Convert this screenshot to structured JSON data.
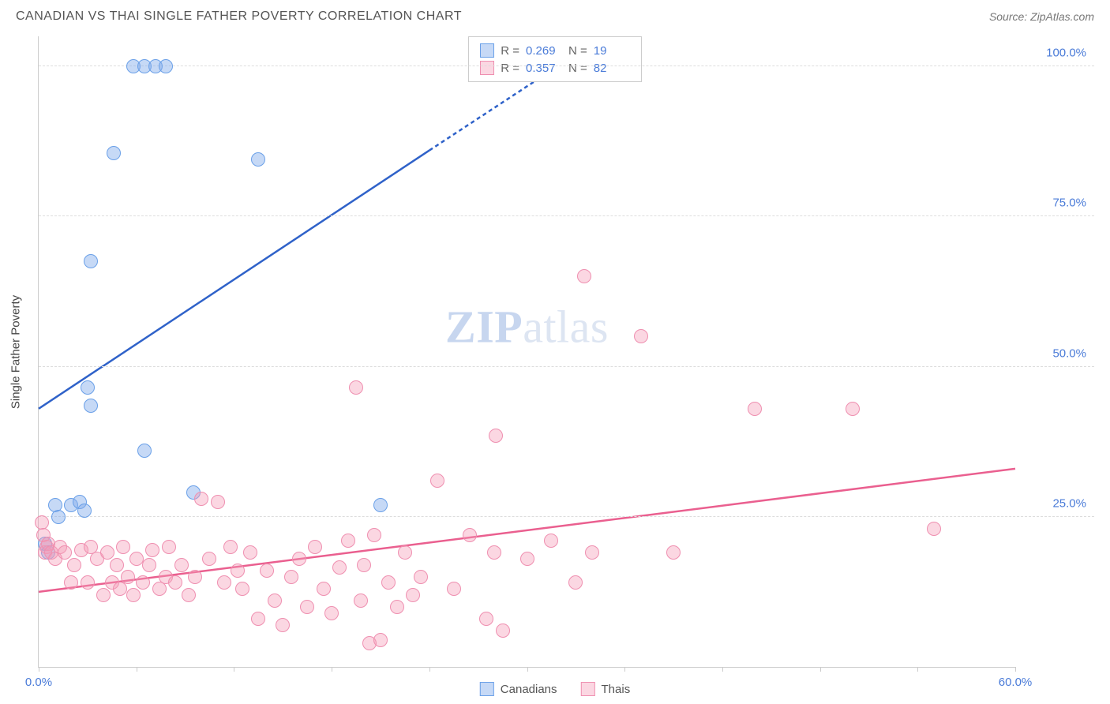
{
  "header": {
    "title": "CANADIAN VS THAI SINGLE FATHER POVERTY CORRELATION CHART",
    "source": "Source: ZipAtlas.com"
  },
  "chart": {
    "type": "scatter",
    "yaxis_title": "Single Father Poverty",
    "xlim": [
      0,
      60
    ],
    "ylim": [
      0,
      105
    ],
    "xtick_positions": [
      0,
      6,
      12,
      18,
      24,
      30,
      36,
      42,
      48,
      54,
      60
    ],
    "xtick_labels": {
      "0": "0.0%",
      "60": "60.0%"
    },
    "ytick_positions": [
      25,
      50,
      75,
      100
    ],
    "ytick_labels": {
      "25": "25.0%",
      "50": "50.0%",
      "75": "75.0%",
      "100": "100.0%"
    },
    "grid_color": "#dddddd",
    "axis_color": "#cccccc",
    "background_color": "#ffffff",
    "point_radius": 9,
    "watermark_zip": "ZIP",
    "watermark_atlas": "atlas",
    "series": [
      {
        "name": "Canadians",
        "fill_color": "rgba(129,171,235,0.45)",
        "stroke_color": "#6aa0e8",
        "trend_color": "#2f62c9",
        "trend_width": 2.5,
        "trend": {
          "x1": 0,
          "y1": 43,
          "x2": 24,
          "y2": 86,
          "x2_dash": 33,
          "y2_dash": 102
        },
        "stats": {
          "R": "0.269",
          "N": "19"
        },
        "points": [
          {
            "x": 0.4,
            "y": 20.5
          },
          {
            "x": 0.6,
            "y": 19
          },
          {
            "x": 1.0,
            "y": 27
          },
          {
            "x": 1.2,
            "y": 25
          },
          {
            "x": 2.0,
            "y": 27
          },
          {
            "x": 2.5,
            "y": 27.5
          },
          {
            "x": 2.8,
            "y": 26
          },
          {
            "x": 3.2,
            "y": 43.5
          },
          {
            "x": 3.0,
            "y": 46.5
          },
          {
            "x": 3.2,
            "y": 67.5
          },
          {
            "x": 4.6,
            "y": 85.5
          },
          {
            "x": 6.5,
            "y": 36
          },
          {
            "x": 5.8,
            "y": 100
          },
          {
            "x": 6.5,
            "y": 100
          },
          {
            "x": 7.2,
            "y": 100
          },
          {
            "x": 7.8,
            "y": 100
          },
          {
            "x": 9.5,
            "y": 29
          },
          {
            "x": 13.5,
            "y": 84.5
          },
          {
            "x": 21.0,
            "y": 27
          }
        ]
      },
      {
        "name": "Thais",
        "fill_color": "rgba(244,154,183,0.40)",
        "stroke_color": "#ef8fb0",
        "trend_color": "#ea5f8f",
        "trend_width": 2.5,
        "trend": {
          "x1": 0,
          "y1": 12.5,
          "x2": 60,
          "y2": 33
        },
        "stats": {
          "R": "0.357",
          "N": "82"
        },
        "points": [
          {
            "x": 0.2,
            "y": 24
          },
          {
            "x": 0.3,
            "y": 22
          },
          {
            "x": 0.5,
            "y": 20
          },
          {
            "x": 0.4,
            "y": 19
          },
          {
            "x": 0.6,
            "y": 20.5
          },
          {
            "x": 0.8,
            "y": 19
          },
          {
            "x": 1.0,
            "y": 18
          },
          {
            "x": 1.3,
            "y": 20
          },
          {
            "x": 1.6,
            "y": 19
          },
          {
            "x": 2.0,
            "y": 14
          },
          {
            "x": 2.2,
            "y": 17
          },
          {
            "x": 2.6,
            "y": 19.5
          },
          {
            "x": 3.0,
            "y": 14
          },
          {
            "x": 3.2,
            "y": 20
          },
          {
            "x": 3.6,
            "y": 18
          },
          {
            "x": 4.0,
            "y": 12
          },
          {
            "x": 4.2,
            "y": 19
          },
          {
            "x": 4.5,
            "y": 14
          },
          {
            "x": 4.8,
            "y": 17
          },
          {
            "x": 5.0,
            "y": 13
          },
          {
            "x": 5.2,
            "y": 20
          },
          {
            "x": 5.5,
            "y": 15
          },
          {
            "x": 5.8,
            "y": 12
          },
          {
            "x": 6.0,
            "y": 18
          },
          {
            "x": 6.4,
            "y": 14
          },
          {
            "x": 6.8,
            "y": 17
          },
          {
            "x": 7.0,
            "y": 19.5
          },
          {
            "x": 7.4,
            "y": 13
          },
          {
            "x": 7.8,
            "y": 15
          },
          {
            "x": 8.0,
            "y": 20
          },
          {
            "x": 8.4,
            "y": 14
          },
          {
            "x": 8.8,
            "y": 17
          },
          {
            "x": 9.2,
            "y": 12
          },
          {
            "x": 9.6,
            "y": 15
          },
          {
            "x": 10.0,
            "y": 28
          },
          {
            "x": 10.5,
            "y": 18
          },
          {
            "x": 11.0,
            "y": 27.5
          },
          {
            "x": 11.4,
            "y": 14
          },
          {
            "x": 11.8,
            "y": 20
          },
          {
            "x": 12.2,
            "y": 16
          },
          {
            "x": 12.5,
            "y": 13
          },
          {
            "x": 13.0,
            "y": 19
          },
          {
            "x": 13.5,
            "y": 8
          },
          {
            "x": 14.0,
            "y": 16
          },
          {
            "x": 14.5,
            "y": 11
          },
          {
            "x": 15.0,
            "y": 7
          },
          {
            "x": 15.5,
            "y": 15
          },
          {
            "x": 16.0,
            "y": 18
          },
          {
            "x": 16.5,
            "y": 10
          },
          {
            "x": 17.0,
            "y": 20
          },
          {
            "x": 17.5,
            "y": 13
          },
          {
            "x": 18.0,
            "y": 9
          },
          {
            "x": 18.5,
            "y": 16.5
          },
          {
            "x": 19.0,
            "y": 21
          },
          {
            "x": 19.5,
            "y": 46.5
          },
          {
            "x": 19.8,
            "y": 11
          },
          {
            "x": 20.0,
            "y": 17
          },
          {
            "x": 20.3,
            "y": 4
          },
          {
            "x": 20.6,
            "y": 22
          },
          {
            "x": 21.0,
            "y": 4.5
          },
          {
            "x": 21.5,
            "y": 14
          },
          {
            "x": 22.0,
            "y": 10
          },
          {
            "x": 22.5,
            "y": 19
          },
          {
            "x": 23.0,
            "y": 12
          },
          {
            "x": 23.5,
            "y": 15
          },
          {
            "x": 24.5,
            "y": 31
          },
          {
            "x": 25.5,
            "y": 13
          },
          {
            "x": 26.5,
            "y": 22
          },
          {
            "x": 27.5,
            "y": 8
          },
          {
            "x": 28.0,
            "y": 19
          },
          {
            "x": 28.1,
            "y": 38.5
          },
          {
            "x": 28.5,
            "y": 6
          },
          {
            "x": 30.0,
            "y": 18
          },
          {
            "x": 31.5,
            "y": 21
          },
          {
            "x": 33.0,
            "y": 14
          },
          {
            "x": 33.5,
            "y": 65
          },
          {
            "x": 34.0,
            "y": 19
          },
          {
            "x": 37.0,
            "y": 55
          },
          {
            "x": 39.0,
            "y": 19
          },
          {
            "x": 44.0,
            "y": 43
          },
          {
            "x": 50.0,
            "y": 43
          },
          {
            "x": 55.0,
            "y": 23
          }
        ]
      }
    ],
    "legend": {
      "stat_R_label": "R =",
      "stat_N_label": "N =",
      "series1_label": "Canadians",
      "series2_label": "Thais"
    }
  }
}
